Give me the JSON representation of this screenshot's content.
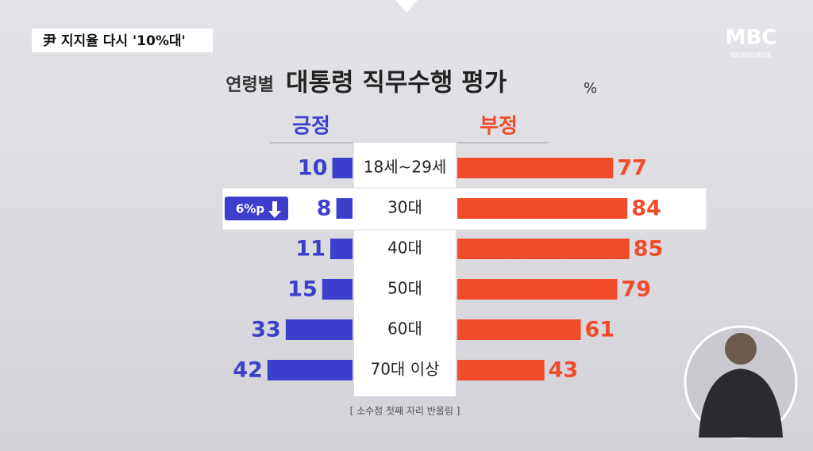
{
  "headline": "尹 지지율 다시 '10%대'",
  "logo": {
    "brand": "MBC",
    "program": "NEWSDESK"
  },
  "chart_data": {
    "type": "diverging_bar",
    "title_prefix": "연령별",
    "title": "대통령 직무수행 평가",
    "unit": "%",
    "categories": [
      "18세~29세",
      "30대",
      "40대",
      "50대",
      "60대",
      "70대 이상"
    ],
    "series": [
      {
        "name": "긍정",
        "color": "#3b3fcc",
        "values": [
          10,
          8,
          11,
          15,
          33,
          42
        ]
      },
      {
        "name": "부정",
        "color": "#f24b2c",
        "values": [
          77,
          84,
          85,
          79,
          61,
          43
        ]
      }
    ],
    "annotation": "6%p",
    "note": "[ 소수점 첫째 자리 반올림 ]"
  }
}
